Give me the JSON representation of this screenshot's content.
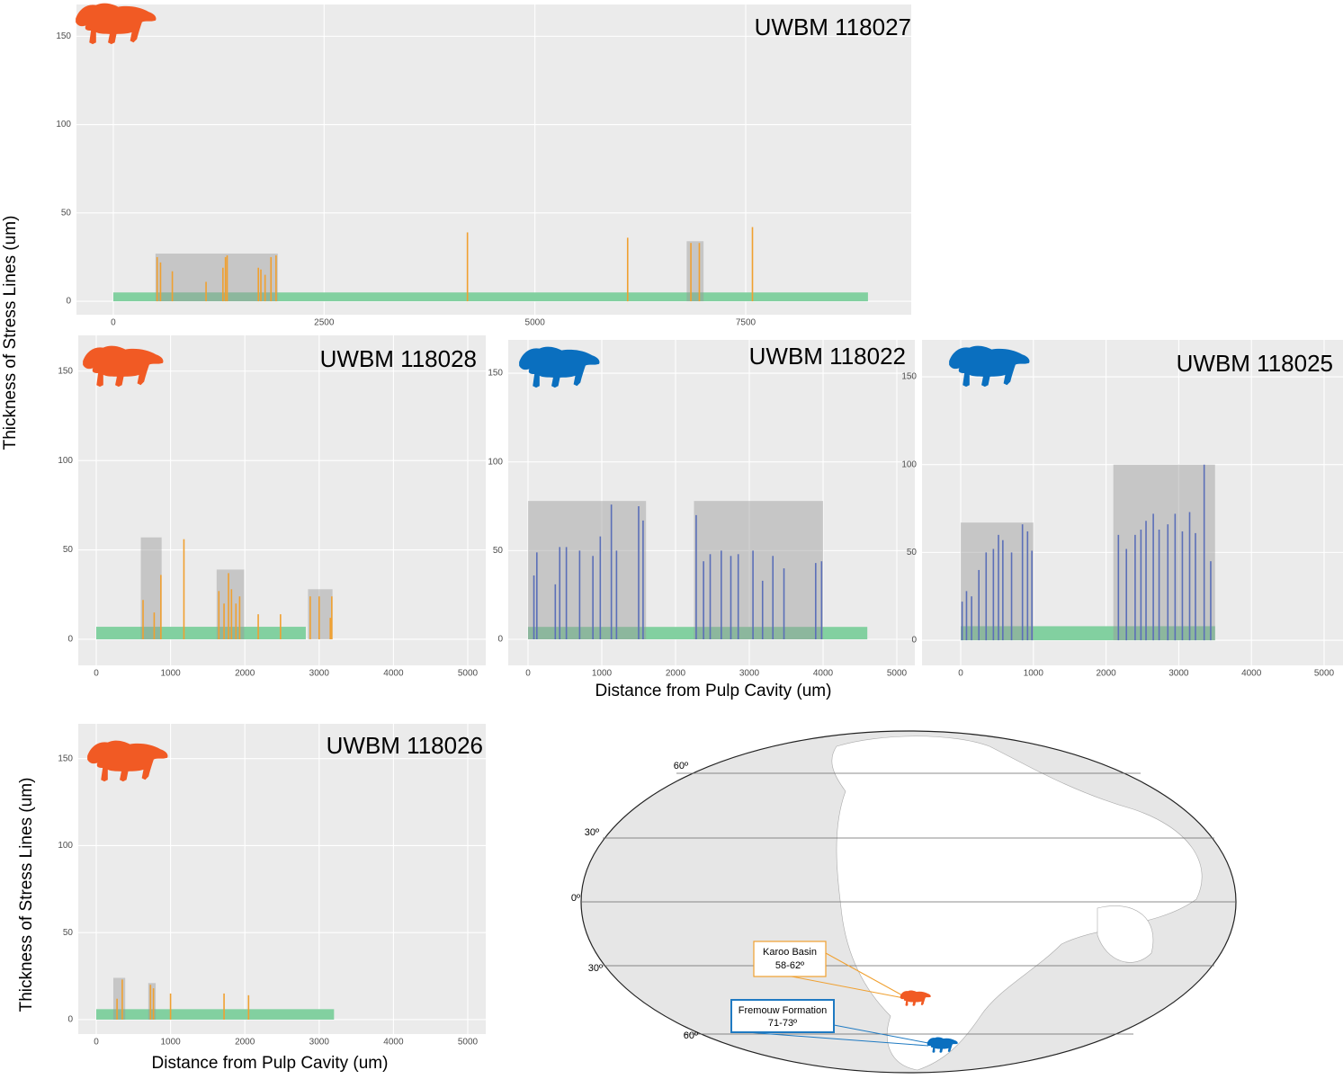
{
  "chart_data": [
    {
      "type": "spike",
      "title": "UWBM 118027",
      "ylabel": "Thickness of Stress Lines (um)",
      "color": "#f0a030",
      "grid": true,
      "xlim": [
        -437,
        9463
      ],
      "ylim": [
        -7.6,
        168
      ],
      "xticks": [
        0,
        2500,
        5000,
        7500
      ],
      "yticks": [
        0,
        50,
        100,
        150
      ],
      "band": {
        "start": 0,
        "end": 8950,
        "height": 5,
        "color": "#82d0a0"
      },
      "regions": [
        {
          "start": 500,
          "end": 1950,
          "height": 27
        },
        {
          "start": 6800,
          "end": 7000,
          "height": 34
        }
      ],
      "x": [
        520,
        560,
        700,
        1100,
        1300,
        1330,
        1350,
        1720,
        1750,
        1800,
        1870,
        1930,
        4200,
        6100,
        6850,
        6950,
        7580
      ],
      "values": [
        25,
        22,
        17,
        11,
        19,
        25,
        26,
        19,
        18,
        15,
        25,
        26,
        39,
        36,
        33,
        33,
        42
      ]
    },
    {
      "type": "spike",
      "title": "UWBM 118028",
      "color": "#f0a030",
      "grid": true,
      "xlim": [
        -242,
        5242
      ],
      "ylim": [
        -14.6,
        170
      ],
      "xticks": [
        0,
        1000,
        2000,
        3000,
        4000,
        5000
      ],
      "yticks": [
        0,
        50,
        100,
        150
      ],
      "band": {
        "start": 0,
        "end": 2820,
        "height": 7,
        "color": "#82d0a0"
      },
      "regions": [
        {
          "start": 600,
          "end": 880,
          "height": 57
        },
        {
          "start": 1620,
          "end": 1990,
          "height": 39
        },
        {
          "start": 2850,
          "end": 3180,
          "height": 28
        }
      ],
      "x": [
        630,
        780,
        870,
        1180,
        1650,
        1720,
        1780,
        1820,
        1880,
        1930,
        2180,
        2480,
        2880,
        3000,
        3150,
        3170
      ],
      "values": [
        22,
        15,
        36,
        56,
        27,
        20,
        37,
        28,
        20,
        24,
        14,
        14,
        24,
        24,
        12,
        24
      ]
    },
    {
      "type": "spike",
      "title": "UWBM 118022",
      "xlabel": "Distance from Pulp Cavity (um)",
      "color": "#5b6fb8",
      "grid": true,
      "xlim": [
        -268,
        5244
      ],
      "ylim": [
        -14.7,
        168.8
      ],
      "xticks": [
        0,
        1000,
        2000,
        3000,
        4000,
        5000
      ],
      "yticks": [
        0,
        50,
        100,
        150
      ],
      "band": {
        "start": 0,
        "end": 4600,
        "height": 7,
        "color": "#82d0a0"
      },
      "regions": [
        {
          "start": 0,
          "end": 1600,
          "height": 78
        },
        {
          "start": 2250,
          "end": 4000,
          "height": 78
        }
      ],
      "x": [
        80,
        120,
        370,
        430,
        520,
        700,
        880,
        980,
        1130,
        1200,
        1500,
        1560,
        2280,
        2380,
        2470,
        2620,
        2750,
        2850,
        3050,
        3180,
        3320,
        3470,
        3900,
        3980
      ],
      "values": [
        36,
        49,
        31,
        52,
        52,
        50,
        47,
        58,
        76,
        50,
        75,
        67,
        70,
        44,
        48,
        50,
        47,
        48,
        50,
        33,
        47,
        40,
        43,
        44
      ]
    },
    {
      "type": "spike",
      "title": "UWBM 118025",
      "color": "#5b6fb8",
      "grid": true,
      "xlim": [
        -532,
        5260
      ],
      "ylim": [
        -14.3,
        171
      ],
      "xticks": [
        0,
        1000,
        2000,
        3000,
        4000,
        5000
      ],
      "yticks": [
        0,
        50,
        100,
        150
      ],
      "band": {
        "start": 0,
        "end": 3500,
        "height": 8,
        "color": "#82d0a0"
      },
      "regions": [
        {
          "start": 0,
          "end": 1000,
          "height": 67
        },
        {
          "start": 2100,
          "end": 3500,
          "height": 100
        }
      ],
      "x": [
        20,
        80,
        150,
        250,
        350,
        450,
        520,
        580,
        700,
        850,
        920,
        980,
        2170,
        2280,
        2400,
        2480,
        2550,
        2650,
        2730,
        2850,
        2950,
        3050,
        3150,
        3230,
        3350,
        3440
      ],
      "values": [
        22,
        28,
        25,
        40,
        50,
        52,
        60,
        57,
        50,
        66,
        62,
        51,
        60,
        52,
        60,
        63,
        68,
        72,
        63,
        66,
        72,
        62,
        73,
        61,
        100,
        45
      ]
    },
    {
      "type": "spike",
      "title": "UWBM 118026",
      "ylabel": "Thickness of Stress Lines (um)",
      "xlabel": "Distance from Pulp Cavity (um)",
      "color": "#f0a030",
      "grid": true,
      "xlim": [
        -242,
        5242
      ],
      "ylim": [
        -8.3,
        170
      ],
      "xticks": [
        0,
        1000,
        2000,
        3000,
        4000,
        5000
      ],
      "yticks": [
        0,
        50,
        100,
        150
      ],
      "band": {
        "start": 0,
        "end": 3200,
        "height": 6,
        "color": "#82d0a0"
      },
      "regions": [
        {
          "start": 230,
          "end": 390,
          "height": 24
        },
        {
          "start": 700,
          "end": 800,
          "height": 21
        }
      ],
      "x": [
        280,
        350,
        730,
        770,
        1000,
        1720,
        2050
      ],
      "values": [
        12,
        23,
        20,
        18,
        15,
        15,
        14
      ]
    }
  ],
  "map": {
    "latitudes": [
      "60º",
      "30º",
      "0º",
      "30º",
      "60º"
    ],
    "sites": [
      {
        "name": "Karoo Basin",
        "range": "58-62º"
      },
      {
        "name": "Fremouw Formation",
        "range": "71-73º"
      }
    ]
  }
}
